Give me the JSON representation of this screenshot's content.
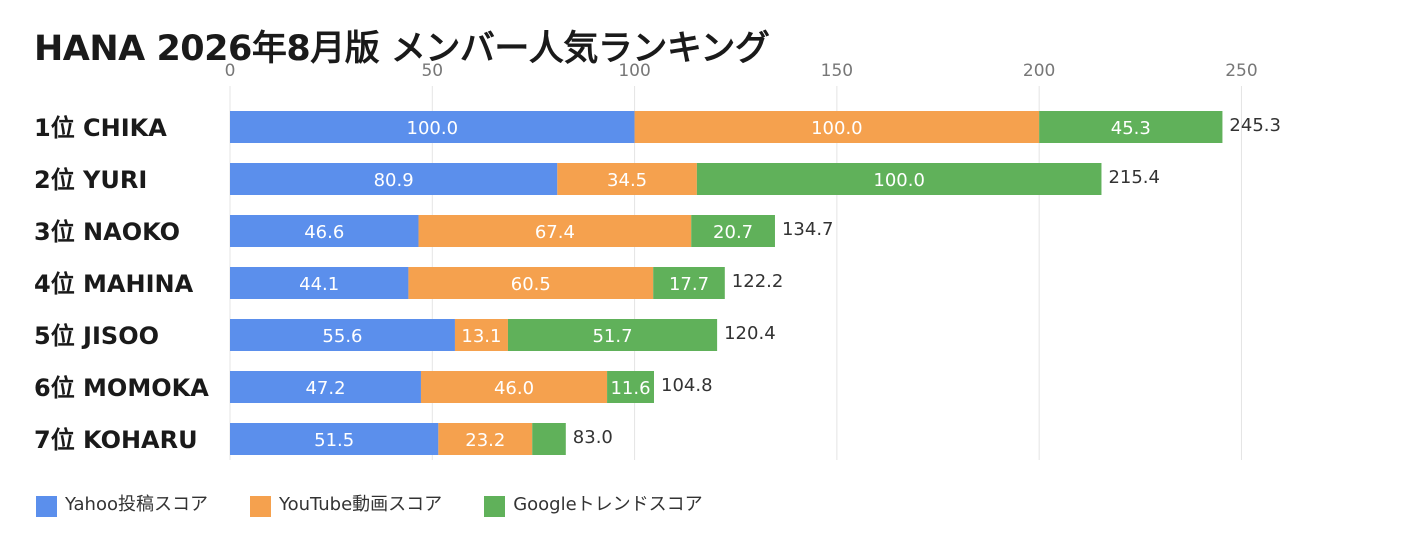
{
  "chart_data": {
    "type": "bar",
    "orientation": "horizontal",
    "stacked": true,
    "title": "HANA 2026年8月版 メンバー人気ランキング",
    "categories": [
      "1位 CHIKA",
      "2位 YURI",
      "3位 NAOKO",
      "4位 MAHINA",
      "5位 JISOO",
      "6位 MOMOKA",
      "7位 KOHARU"
    ],
    "series": [
      {
        "name": "Yahoo投稿スコア",
        "color": "#5b8fec",
        "values": [
          100.0,
          80.9,
          46.6,
          44.1,
          55.6,
          47.2,
          51.5
        ],
        "labels": [
          "100.0",
          "80.9",
          "46.6",
          "44.1",
          "55.6",
          "47.2",
          "51.5"
        ]
      },
      {
        "name": "YouTube動画スコア",
        "color": "#f5a14e",
        "values": [
          100.0,
          34.5,
          67.4,
          60.5,
          13.1,
          46.0,
          23.2
        ],
        "labels": [
          "100.0",
          "34.5",
          "67.4",
          "60.5",
          "13.1",
          "46.0",
          "23.2"
        ]
      },
      {
        "name": "Googleトレンドスコア",
        "color": "#60b15a",
        "values": [
          45.3,
          100.0,
          20.7,
          17.7,
          51.7,
          11.6,
          8.3
        ],
        "labels": [
          "45.3",
          "100.0",
          "20.7",
          "17.7",
          "51.7",
          "11.6",
          ""
        ]
      }
    ],
    "totals": [
      "245.3",
      "215.4",
      "134.7",
      "122.2",
      "120.4",
      "104.8",
      "83.0"
    ],
    "xlim": [
      0,
      262
    ],
    "xticks": [
      0,
      50,
      100,
      150,
      200,
      250
    ],
    "xtick_labels": [
      "0",
      "50",
      "100",
      "150",
      "200",
      "250"
    ],
    "axis_position": "top",
    "grid": true,
    "legend_position": "bottom-left"
  }
}
